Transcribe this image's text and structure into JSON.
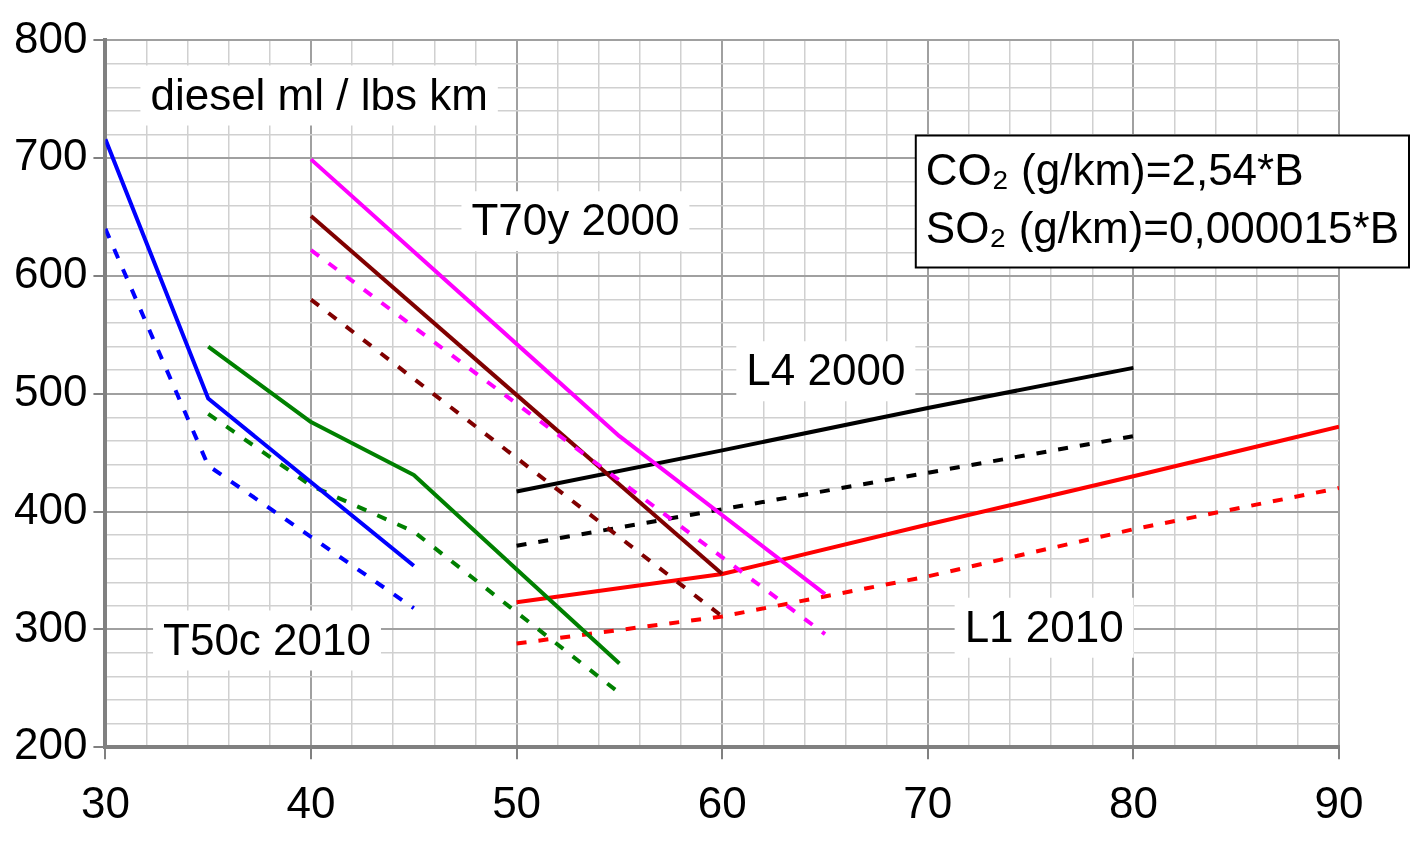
{
  "chart_data": {
    "type": "line",
    "ylabel": "diesel ml / lbs km",
    "xlim": [
      30,
      90
    ],
    "ylim": [
      200,
      800
    ],
    "xticks": [
      30,
      {
        "value": 32,
        "label": null
      },
      {
        "value": 34,
        "label": null
      },
      {
        "value": 36,
        "label": null
      },
      {
        "value": 38,
        "label": null
      },
      40,
      {
        "value": 42,
        "label": null
      },
      {
        "value": 44,
        "label": null
      },
      {
        "value": 46,
        "label": null
      },
      {
        "value": 48,
        "label": null
      },
      50,
      {
        "value": 52,
        "label": null
      },
      {
        "value": 54,
        "label": null
      },
      {
        "value": 56,
        "label": null
      },
      {
        "value": 58,
        "label": null
      },
      60,
      {
        "value": 62,
        "label": null
      },
      {
        "value": 64,
        "label": null
      },
      {
        "value": 66,
        "label": null
      },
      {
        "value": 68,
        "label": null
      },
      70,
      {
        "value": 72,
        "label": null
      },
      {
        "value": 74,
        "label": null
      },
      {
        "value": 76,
        "label": null
      },
      {
        "value": 78,
        "label": null
      },
      80,
      {
        "value": 82,
        "label": null
      },
      {
        "value": 84,
        "label": null
      },
      {
        "value": 86,
        "label": null
      },
      {
        "value": 88,
        "label": null
      },
      90
    ],
    "yticks": [
      200,
      {
        "value": 220,
        "label": null
      },
      {
        "value": 240,
        "label": null
      },
      {
        "value": 260,
        "label": null
      },
      {
        "value": 280,
        "label": null
      },
      300,
      {
        "value": 320,
        "label": null
      },
      {
        "value": 340,
        "label": null
      },
      {
        "value": 360,
        "label": null
      },
      {
        "value": 380,
        "label": null
      },
      400,
      {
        "value": 420,
        "label": null
      },
      {
        "value": 440,
        "label": null
      },
      {
        "value": 460,
        "label": null
      },
      {
        "value": 480,
        "label": null
      },
      500,
      {
        "value": 520,
        "label": null
      },
      {
        "value": 540,
        "label": null
      },
      {
        "value": 560,
        "label": null
      },
      {
        "value": 580,
        "label": null
      },
      600,
      {
        "value": 620,
        "label": null
      },
      {
        "value": 640,
        "label": null
      },
      {
        "value": 660,
        "label": null
      },
      {
        "value": 680,
        "label": null
      },
      700,
      {
        "value": 720,
        "label": null
      },
      {
        "value": 740,
        "label": null
      },
      {
        "value": 760,
        "label": null
      },
      {
        "value": 780,
        "label": null
      },
      800
    ],
    "grid": true,
    "legend": false,
    "marker": "none",
    "series": [
      {
        "color": "#0000ff",
        "line_style": "solid",
        "x": [
          30,
          35,
          45
        ],
        "values": [
          716,
          496,
          354
        ]
      },
      {
        "color": "#0000ff",
        "line_style": "dashed",
        "x": [
          30,
          35,
          45
        ],
        "values": [
          640,
          439,
          318
        ]
      },
      {
        "color": "#008000",
        "line_style": "solid",
        "x": [
          35,
          40,
          45,
          55
        ],
        "values": [
          540,
          476,
          431,
          271
        ]
      },
      {
        "color": "#008000",
        "line_style": "dashed",
        "x": [
          35,
          40,
          45,
          55
        ],
        "values": [
          483,
          422,
          383,
          246
        ]
      },
      {
        "color": "#ff00ff",
        "line_style": "solid",
        "x": [
          40,
          55,
          65
        ],
        "values": [
          699,
          464,
          330
        ]
      },
      {
        "color": "#ff00ff",
        "line_style": "dashed",
        "x": [
          40,
          65
        ],
        "values": [
          622,
          296
        ]
      },
      {
        "color": "#800000",
        "line_style": "solid",
        "x": [
          40,
          60
        ],
        "values": [
          651,
          347
        ]
      },
      {
        "color": "#800000",
        "line_style": "dashed",
        "x": [
          40,
          60
        ],
        "values": [
          580,
          311
        ]
      },
      {
        "color": "#000000",
        "line_style": "solid",
        "x": [
          50,
          60,
          70,
          80
        ],
        "values": [
          417,
          452,
          488,
          522
        ]
      },
      {
        "color": "#000000",
        "line_style": "dashed",
        "x": [
          50,
          80
        ],
        "values": [
          371,
          464
        ]
      },
      {
        "color": "#ff0000",
        "line_style": "solid",
        "x": [
          50,
          60,
          70,
          80,
          90
        ],
        "values": [
          323,
          347,
          389,
          430,
          472
        ]
      },
      {
        "color": "#ff0000",
        "line_style": "dashed",
        "x": [
          50,
          60,
          70,
          80,
          90
        ],
        "values": [
          288,
          311,
          345,
          385,
          420
        ]
      }
    ],
    "annotations": [
      "T70y 2000",
      "L4 2000",
      "T50c 2010",
      "L1 2010",
      "CO₂ (g/km)=2,54*B",
      "SO₂ (g/km)=0,000015*B"
    ]
  }
}
